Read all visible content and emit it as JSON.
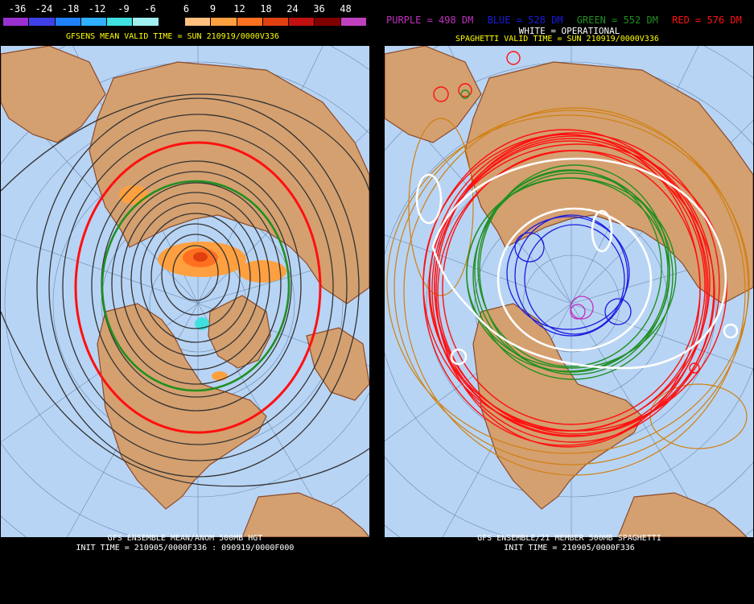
{
  "colorbar": {
    "labels": [
      "-36",
      "-24",
      "-18",
      "-12",
      "-9",
      "-6",
      "6",
      "9",
      "12",
      "18",
      "24",
      "36",
      "48"
    ],
    "colors": [
      "#9b30d0",
      "#4040e8",
      "#2080ff",
      "#30b0ff",
      "#40e0e0",
      "#a0f0f0",
      "#000000",
      "#ffc080",
      "#ffa040",
      "#ff7020",
      "#e04010",
      "#c01010",
      "#800000",
      "#c040c0"
    ]
  },
  "left": {
    "title": "GFSENS MEAN VALID TIME = SUN 210919/0000V336",
    "footer_line1": "GFS ENSEMBLE MEAN/ANOM 500MB HGT",
    "footer_line2": "INIT TIME = 210905/0000F336 : 090919/0000F000"
  },
  "right": {
    "legend": {
      "purple": "PURPLE = 498 DM",
      "blue": "BLUE = 528 DM",
      "green": "GREEN = 552 DM",
      "red": "RED = 576 DM"
    },
    "white_op": "WHITE = OPERATIONAL",
    "title": "SPAGHETTI VALID TIME = SUN 210919/0000V336",
    "footer_line1": "GFS ENSEMBLE/21 MEMBER 500MB SPAGHETTI",
    "footer_line2": "INIT TIME = 210905/0000F336"
  },
  "colors": {
    "ocean": "#b8d4f4",
    "land": "#d4a070",
    "coast": "#8b4a2a",
    "title_yellow": "#ffff00",
    "purple": "#c030c0",
    "blue": "#1a1ae0",
    "green": "#209020",
    "red": "#ff1010",
    "orange": "#d08010"
  }
}
